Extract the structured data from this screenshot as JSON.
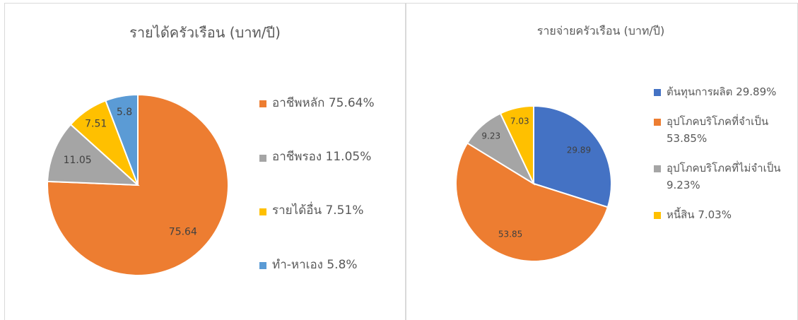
{
  "chart_data": [
    {
      "type": "pie",
      "title": "รายได้ครัวเรือน (บาท/ปี)",
      "categories": [
        "อาชีพหลัก 75.64%",
        "อาชีพรอง 11.05%",
        "รายได้อื่น 7.51%",
        "ทำ-หาเอง 5.8%"
      ],
      "values": [
        75.64,
        11.05,
        7.51,
        5.8
      ],
      "colors": [
        "#ED7D31",
        "#A5A5A5",
        "#FFC000",
        "#5B9BD5"
      ],
      "legend": "right"
    },
    {
      "type": "pie",
      "title": "รายจ่ายครัวเรือน (บาท/ปี)",
      "categories": [
        "ต้นทุนการผลิต 29.89%",
        "อุปโภคบริโภคที่จำเป็น 53.85%",
        "อุปโภคบริโภคที่ไม่จำเป็น 9.23%",
        "หนี้สิน 7.03%"
      ],
      "values": [
        29.89,
        53.85,
        9.23,
        7.03
      ],
      "colors": [
        "#4472C4",
        "#ED7D31",
        "#A5A5A5",
        "#FFC000"
      ],
      "legend": "right"
    }
  ]
}
